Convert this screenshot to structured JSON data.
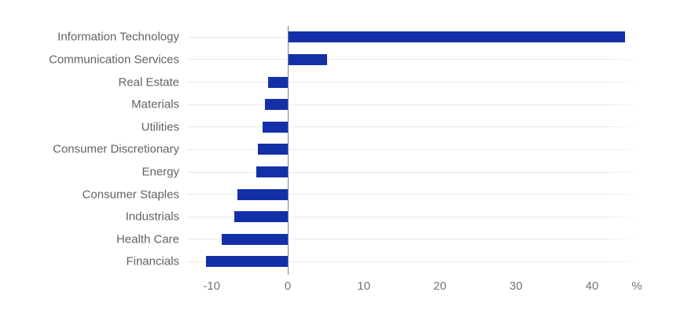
{
  "chart_data": {
    "type": "bar",
    "orientation": "horizontal",
    "title": "",
    "xlabel": "",
    "ylabel": "",
    "unit_label": "%",
    "categories": [
      "Information Technology",
      "Communication Services",
      "Real Estate",
      "Materials",
      "Utilities",
      "Consumer Discretionary",
      "Energy",
      "Consumer Staples",
      "Industrials",
      "Health Care",
      "Financials"
    ],
    "values": [
      44.2,
      5.1,
      -2.6,
      -3.0,
      -3.3,
      -3.9,
      -4.1,
      -6.6,
      -7.0,
      -8.7,
      -10.7
    ],
    "x_ticks": [
      -10,
      0,
      10,
      20,
      30,
      40
    ],
    "xlim": [
      -13.2,
      46.8
    ],
    "legend": "none",
    "grid": "horizontal-row-lines",
    "colors": {
      "bar": "#1430a8",
      "category_label": "#5f6368",
      "tick_label": "#757575",
      "gridline": "#e9e9e9",
      "zero_axis": "#808080",
      "background": "#ffffff"
    }
  }
}
